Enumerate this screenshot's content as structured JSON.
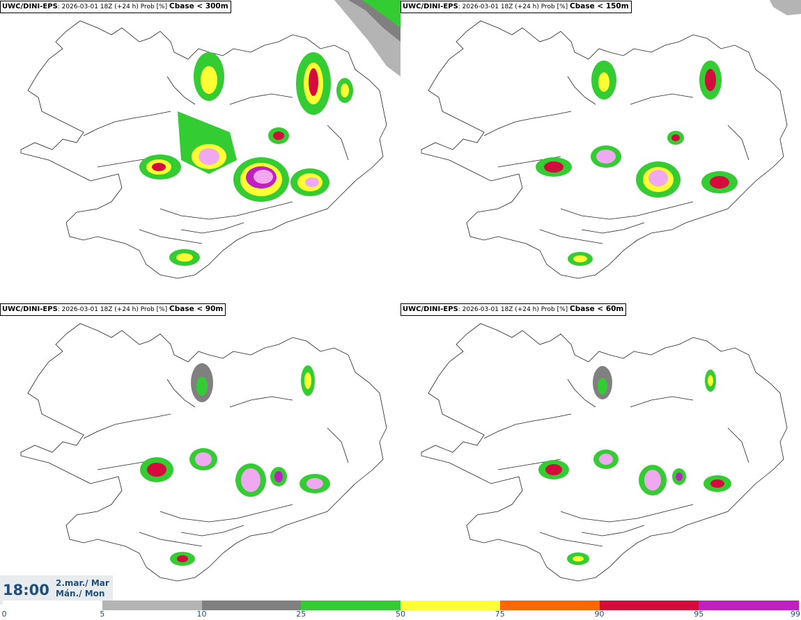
{
  "panels": [
    {
      "model": "UWC/DINI-EPS",
      "info": ": 2026-03-01 18Z (+24 h) Prob [%] ",
      "param": "Cbase < 300m"
    },
    {
      "model": "UWC/DINI-EPS",
      "info": ": 2026-03-01 18Z (+24 h) Prob [%] ",
      "param": "Cbase < 150m"
    },
    {
      "model": "UWC/DINI-EPS",
      "info": ": 2026-03-01 18Z (+24 h) Prob [%] ",
      "param": "Cbase < 90m"
    },
    {
      "model": "UWC/DINI-EPS",
      "info": ": 2026-03-01 18Z (+24 h) Prob [%] ",
      "param": "Cbase < 60m"
    }
  ],
  "valid_time": {
    "time": "18:00",
    "date_line1": "2.mar./ Mar",
    "date_line2": "Mán./ Mon"
  },
  "colorbar": {
    "ticks": [
      "0",
      "5",
      "10",
      "25",
      "50",
      "75",
      "90",
      "95",
      "99"
    ],
    "colors": [
      "#ffffff",
      "#b4b4b4",
      "#808080",
      "#33cc33",
      "#ffff33",
      "#ff6600",
      "#d60a3c",
      "#c020c0",
      "#f0a8f0"
    ]
  }
}
